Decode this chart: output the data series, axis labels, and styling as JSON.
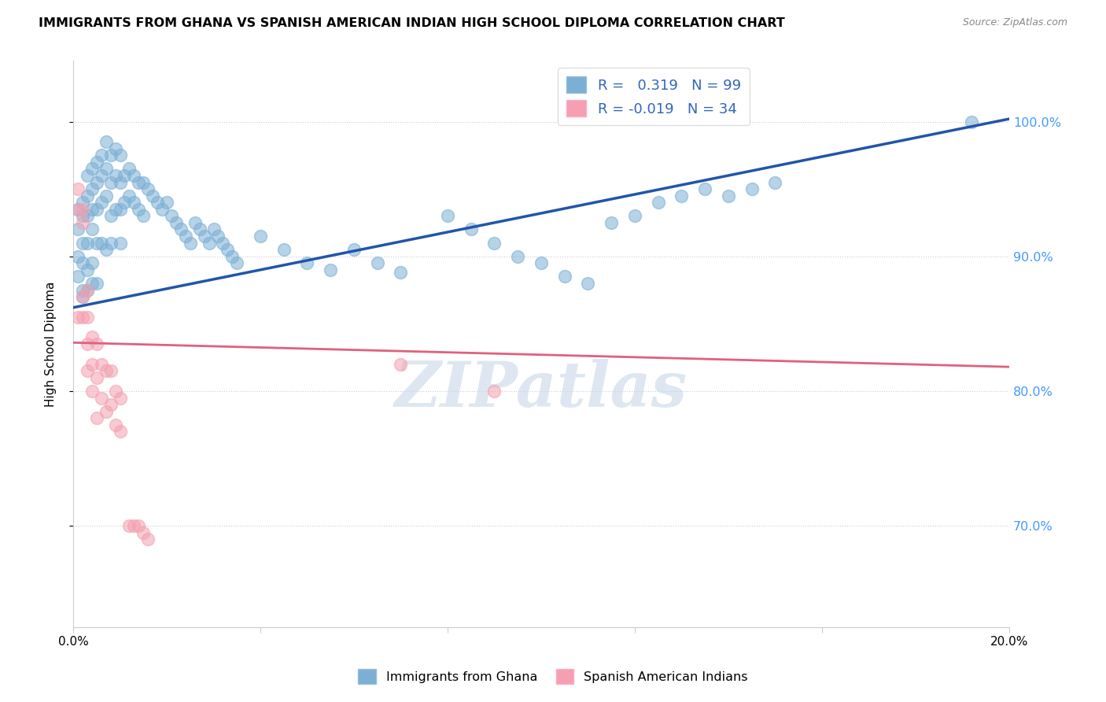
{
  "title": "IMMIGRANTS FROM GHANA VS SPANISH AMERICAN INDIAN HIGH SCHOOL DIPLOMA CORRELATION CHART",
  "source": "Source: ZipAtlas.com",
  "ylabel": "High School Diploma",
  "ytick_vals": [
    1.0,
    0.9,
    0.8,
    0.7
  ],
  "ytick_labels": [
    "100.0%",
    "90.0%",
    "80.0%",
    "70.0%"
  ],
  "xtick_vals": [
    0.0,
    0.04,
    0.08,
    0.12,
    0.16,
    0.2
  ],
  "xtick_labels": [
    "0.0%",
    "",
    "",
    "",
    "",
    "20.0%"
  ],
  "blue_color": "#7BAFD4",
  "pink_color": "#F4A0B0",
  "blue_line_color": "#2255AA",
  "pink_line_color": "#E06080",
  "watermark_text": "ZIPatlas",
  "watermark_color": "#C8D8E8",
  "xlim": [
    0.0,
    0.2
  ],
  "ylim": [
    0.625,
    1.045
  ],
  "blue_trend_x": [
    0.0,
    0.2
  ],
  "blue_trend_y": [
    0.862,
    1.002
  ],
  "pink_trend_x": [
    0.0,
    0.2
  ],
  "pink_trend_y": [
    0.836,
    0.818
  ],
  "blue_scatter_x": [
    0.001,
    0.001,
    0.001,
    0.001,
    0.002,
    0.002,
    0.002,
    0.002,
    0.002,
    0.002,
    0.003,
    0.003,
    0.003,
    0.003,
    0.003,
    0.003,
    0.004,
    0.004,
    0.004,
    0.004,
    0.004,
    0.004,
    0.005,
    0.005,
    0.005,
    0.005,
    0.005,
    0.006,
    0.006,
    0.006,
    0.006,
    0.007,
    0.007,
    0.007,
    0.007,
    0.008,
    0.008,
    0.008,
    0.008,
    0.009,
    0.009,
    0.009,
    0.01,
    0.01,
    0.01,
    0.01,
    0.011,
    0.011,
    0.012,
    0.012,
    0.013,
    0.013,
    0.014,
    0.014,
    0.015,
    0.015,
    0.016,
    0.017,
    0.018,
    0.019,
    0.02,
    0.021,
    0.022,
    0.023,
    0.024,
    0.025,
    0.026,
    0.027,
    0.028,
    0.029,
    0.03,
    0.031,
    0.032,
    0.033,
    0.034,
    0.035,
    0.04,
    0.045,
    0.05,
    0.055,
    0.06,
    0.065,
    0.07,
    0.08,
    0.085,
    0.09,
    0.095,
    0.1,
    0.105,
    0.11,
    0.115,
    0.12,
    0.125,
    0.13,
    0.135,
    0.14,
    0.145,
    0.15,
    0.192
  ],
  "blue_scatter_y": [
    0.935,
    0.92,
    0.9,
    0.885,
    0.94,
    0.93,
    0.91,
    0.895,
    0.875,
    0.87,
    0.96,
    0.945,
    0.93,
    0.91,
    0.89,
    0.875,
    0.965,
    0.95,
    0.935,
    0.92,
    0.895,
    0.88,
    0.97,
    0.955,
    0.935,
    0.91,
    0.88,
    0.975,
    0.96,
    0.94,
    0.91,
    0.985,
    0.965,
    0.945,
    0.905,
    0.975,
    0.955,
    0.93,
    0.91,
    0.98,
    0.96,
    0.935,
    0.975,
    0.955,
    0.935,
    0.91,
    0.96,
    0.94,
    0.965,
    0.945,
    0.96,
    0.94,
    0.955,
    0.935,
    0.955,
    0.93,
    0.95,
    0.945,
    0.94,
    0.935,
    0.94,
    0.93,
    0.925,
    0.92,
    0.915,
    0.91,
    0.925,
    0.92,
    0.915,
    0.91,
    0.92,
    0.915,
    0.91,
    0.905,
    0.9,
    0.895,
    0.915,
    0.905,
    0.895,
    0.89,
    0.905,
    0.895,
    0.888,
    0.93,
    0.92,
    0.91,
    0.9,
    0.895,
    0.885,
    0.88,
    0.925,
    0.93,
    0.94,
    0.945,
    0.95,
    0.945,
    0.95,
    0.955,
    1.0
  ],
  "pink_scatter_x": [
    0.001,
    0.001,
    0.001,
    0.002,
    0.002,
    0.002,
    0.002,
    0.003,
    0.003,
    0.003,
    0.003,
    0.004,
    0.004,
    0.004,
    0.005,
    0.005,
    0.005,
    0.006,
    0.006,
    0.007,
    0.007,
    0.008,
    0.008,
    0.009,
    0.009,
    0.01,
    0.01,
    0.012,
    0.013,
    0.014,
    0.015,
    0.016,
    0.07,
    0.09
  ],
  "pink_scatter_y": [
    0.95,
    0.935,
    0.855,
    0.935,
    0.925,
    0.87,
    0.855,
    0.875,
    0.855,
    0.835,
    0.815,
    0.84,
    0.82,
    0.8,
    0.835,
    0.81,
    0.78,
    0.82,
    0.795,
    0.815,
    0.785,
    0.815,
    0.79,
    0.8,
    0.775,
    0.795,
    0.77,
    0.7,
    0.7,
    0.7,
    0.695,
    0.69,
    0.82,
    0.8
  ],
  "legend_r1": "R =  0.319   N = 99",
  "legend_r2": "R = -0.019   N = 34"
}
